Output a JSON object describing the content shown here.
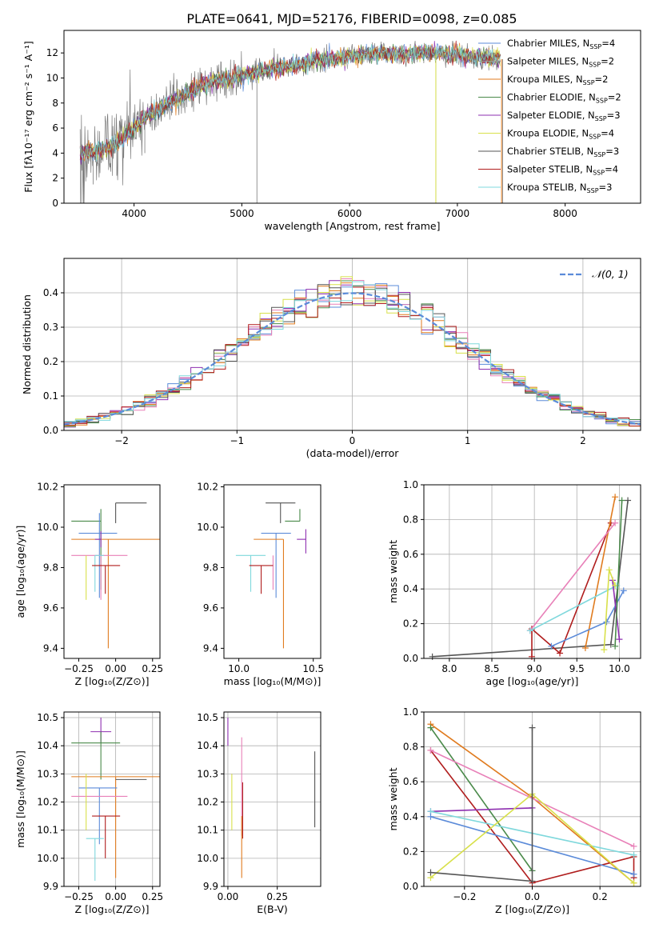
{
  "title": "PLATE=0641, MJD=52176, FIBERID=0098, z=0.085",
  "colors": {
    "chabrier_miles": "#5b8bd9",
    "salpeter_miles": "#9a9a9a",
    "kroupa_miles": "#e07b1f",
    "chabrier_elodie": "#4a8a4a",
    "salpeter_elodie": "#8e2fb0",
    "kroupa_elodie": "#d8e04a",
    "chabrier_stelib": "#555555",
    "salpeter_stelib": "#b01d1d",
    "kroupa_stelib": "#7fd8dc",
    "pink": "#e880b8",
    "gaussian": "#5b8bd9"
  },
  "chart_data": [
    {
      "id": "spectrum",
      "type": "line",
      "xlabel": "wavelength [Angstrom, rest frame]",
      "ylabel": "Flux [fλ10⁻¹⁷ erg cm⁻² s⁻¹ A⁻¹]",
      "xlim": [
        3350,
        8700
      ],
      "ylim": [
        0,
        13.8
      ],
      "xticks": [
        "4000",
        "5000",
        "6000",
        "7000",
        "8000"
      ],
      "yticks": [
        "0",
        "2",
        "4",
        "6",
        "8",
        "10",
        "12"
      ],
      "legend": "top-right",
      "series": [
        {
          "name": "Chabrier MILES, N_SSP=4",
          "color": "chabrier_miles"
        },
        {
          "name": "Salpeter MILES, N_SSP=2",
          "color": "salpeter_miles"
        },
        {
          "name": "Kroupa MILES, N_SSP=2",
          "color": "kroupa_miles"
        },
        {
          "name": "Chabrier ELODIE, N_SSP=2",
          "color": "chabrier_elodie"
        },
        {
          "name": "Salpeter ELODIE, N_SSP=3",
          "color": "salpeter_elodie"
        },
        {
          "name": "Kroupa ELODIE, N_SSP=4",
          "color": "kroupa_elodie"
        },
        {
          "name": "Chabrier STELIB, N_SSP=3",
          "color": "chabrier_stelib"
        },
        {
          "name": "Salpeter STELIB, N_SSP=4",
          "color": "salpeter_stelib"
        },
        {
          "name": "Kroupa STELIB, N_SSP=3",
          "color": "kroupa_stelib"
        }
      ],
      "observed_continuum": {
        "x": [
          3500,
          3700,
          3900,
          4000,
          4100,
          4300,
          4500,
          4700,
          4900,
          5100,
          5300,
          5500,
          5700,
          5900,
          6100,
          6300,
          6500,
          6700,
          6900,
          7100,
          7300,
          7400
        ],
        "y": [
          4.0,
          4.2,
          5.2,
          6.0,
          6.8,
          7.9,
          8.8,
          9.6,
          10.0,
          10.4,
          10.7,
          11.0,
          11.4,
          11.6,
          11.8,
          12.0,
          11.8,
          12.1,
          11.9,
          11.8,
          11.6,
          11.5
        ]
      }
    },
    {
      "id": "residuals",
      "type": "histogram",
      "xlabel": "(data-model)/error",
      "ylabel": "Normed distribution",
      "xlim": [
        -2.5,
        2.5
      ],
      "ylim": [
        0,
        0.5
      ],
      "xticks": [
        "−2",
        "−1",
        "0",
        "1",
        "2"
      ],
      "yticks": [
        "0.0",
        "0.1",
        "0.2",
        "0.3",
        "0.4"
      ],
      "legend_label": "𝒩(0, 1)",
      "bin_width": 0.1,
      "gaussian": {
        "mean": 0,
        "sigma": 1
      }
    },
    {
      "id": "age_vs_Z",
      "type": "scatter",
      "xlabel": "Z [log₁₀(Z/Z⊙)]",
      "ylabel": "age  [log₁₀(age/yr)]",
      "xlim": [
        -0.35,
        0.3
      ],
      "ylim": [
        9.35,
        10.21
      ],
      "xticks": [
        -0.25,
        0.0,
        0.25
      ],
      "xtick_labels": [
        "−0.25",
        "0.00",
        "0.25"
      ],
      "yticks": [
        9.4,
        9.6,
        9.8,
        10.0,
        10.2
      ],
      "ytick_labels": [
        "9.4",
        "9.6",
        "9.8",
        "10.0",
        "10.2"
      ],
      "points": [
        {
          "color": "chabrier_stelib",
          "x": 0.0,
          "y": 10.12,
          "xerr": [
            0.0,
            0.21
          ],
          "yerr": [
            0.1,
            0.0
          ]
        },
        {
          "color": "chabrier_elodie",
          "x": -0.1,
          "y": 10.03,
          "xerr": [
            0.2,
            0.0
          ],
          "yerr": [
            0.34,
            0.06
          ]
        },
        {
          "color": "chabrier_miles",
          "x": -0.11,
          "y": 9.97,
          "xerr": [
            0.14,
            0.12
          ],
          "yerr": [
            0.32,
            0.1
          ]
        },
        {
          "color": "kroupa_miles",
          "x": -0.05,
          "y": 9.94,
          "xerr": [
            0.25,
            0.35
          ],
          "yerr": [
            0.54,
            0.0
          ]
        },
        {
          "color": "salpeter_elodie",
          "x": -0.1,
          "y": 9.94,
          "xerr": [
            0.04,
            0.0
          ],
          "yerr": [
            0.04,
            0.04
          ]
        },
        {
          "color": "pink",
          "x": -0.1,
          "y": 9.86,
          "xerr": [
            0.2,
            0.18
          ],
          "yerr": [
            0.22,
            0.0
          ]
        },
        {
          "color": "kroupa_stelib",
          "x": -0.14,
          "y": 9.86,
          "xerr": [
            0.0,
            0.06
          ],
          "yerr": [
            0.18,
            0.0
          ]
        },
        {
          "color": "salpeter_stelib",
          "x": -0.07,
          "y": 9.81,
          "xerr": [
            0.09,
            0.1
          ],
          "yerr": [
            0.14,
            0.0
          ]
        },
        {
          "color": "kroupa_elodie",
          "x": -0.2,
          "y": 9.86,
          "xerr": [
            0.0,
            0.0
          ],
          "yerr": [
            0.22,
            0.0
          ]
        }
      ]
    },
    {
      "id": "age_vs_mass",
      "type": "scatter",
      "xlabel": "mass [log₁₀(M/M⊙)]",
      "ylabel": "",
      "xlim": [
        9.9,
        10.55
      ],
      "ylim": [
        9.35,
        10.21
      ],
      "xticks": [
        10.0,
        10.5
      ],
      "xtick_labels": [
        "10.0",
        "10.5"
      ],
      "yticks": [
        9.4,
        9.6,
        9.8,
        10.0,
        10.2
      ],
      "ytick_labels": [
        "9.4",
        "9.6",
        "9.8",
        "10.0",
        "10.2"
      ],
      "points": [
        {
          "color": "chabrier_stelib",
          "x": 10.28,
          "y": 10.12,
          "xerr": [
            0.1,
            0.1
          ],
          "yerr": [
            0.1,
            0.0
          ]
        },
        {
          "color": "chabrier_elodie",
          "x": 10.41,
          "y": 10.03,
          "xerr": [
            0.1,
            0.0
          ],
          "yerr": [
            0.0,
            0.06
          ]
        },
        {
          "color": "chabrier_miles",
          "x": 10.25,
          "y": 9.97,
          "xerr": [
            0.1,
            0.1
          ],
          "yerr": [
            0.32,
            0.0
          ]
        },
        {
          "color": "kroupa_miles",
          "x": 10.3,
          "y": 9.94,
          "xerr": [
            0.2,
            0.0
          ],
          "yerr": [
            0.54,
            0.0
          ]
        },
        {
          "color": "salpeter_elodie",
          "x": 10.45,
          "y": 9.94,
          "xerr": [
            0.06,
            0.0
          ],
          "yerr": [
            0.07,
            0.05
          ]
        },
        {
          "color": "pink",
          "x": 10.23,
          "y": 9.86,
          "xerr": [
            0.0,
            0.0
          ],
          "yerr": [
            0.17,
            0.0
          ]
        },
        {
          "color": "kroupa_stelib",
          "x": 10.08,
          "y": 9.86,
          "xerr": [
            0.1,
            0.1
          ],
          "yerr": [
            0.18,
            0.0
          ]
        },
        {
          "color": "salpeter_stelib",
          "x": 10.15,
          "y": 9.81,
          "xerr": [
            0.08,
            0.08
          ],
          "yerr": [
            0.14,
            0.0
          ]
        }
      ]
    },
    {
      "id": "weight_vs_age",
      "type": "line",
      "xlabel": "age  [log₁₀(age/yr)]",
      "ylabel": "mass weight",
      "xlim": [
        7.7,
        10.25
      ],
      "ylim": [
        0,
        1.0
      ],
      "xticks": [
        8.0,
        8.5,
        9.0,
        9.5,
        10.0
      ],
      "xtick_labels": [
        "8.0",
        "8.5",
        "9.0",
        "9.5",
        "10.0"
      ],
      "yticks": [
        0.0,
        0.2,
        0.4,
        0.6,
        0.8,
        1.0
      ],
      "ytick_labels": [
        "0.0",
        "0.2",
        "0.4",
        "0.6",
        "0.8",
        "1.0"
      ],
      "series": [
        {
          "color": "chabrier_stelib",
          "x": [
            7.8,
            9.9,
            10.1
          ],
          "y": [
            0.01,
            0.08,
            0.91
          ]
        },
        {
          "color": "salpeter_stelib",
          "x": [
            8.97,
            8.97,
            9.3,
            9.9
          ],
          "y": [
            0.01,
            0.17,
            0.03,
            0.78
          ]
        },
        {
          "color": "kroupa_miles",
          "x": [
            9.6,
            9.95
          ],
          "y": [
            0.06,
            0.93
          ]
        },
        {
          "color": "pink",
          "x": [
            8.95,
            9.95
          ],
          "y": [
            0.16,
            0.78
          ]
        },
        {
          "color": "kroupa_stelib",
          "x": [
            8.95,
            9.97
          ],
          "y": [
            0.16,
            0.42
          ]
        },
        {
          "color": "chabrier_miles",
          "x": [
            9.2,
            9.85,
            10.05
          ],
          "y": [
            0.07,
            0.21,
            0.39
          ]
        },
        {
          "color": "salpeter_elodie",
          "x": [
            9.92,
            10.0
          ],
          "y": [
            0.45,
            0.11
          ]
        },
        {
          "color": "kroupa_elodie",
          "x": [
            9.82,
            9.88,
            9.95
          ],
          "y": [
            0.05,
            0.51,
            0.42
          ]
        },
        {
          "color": "chabrier_elodie",
          "x": [
            9.95,
            10.03
          ],
          "y": [
            0.07,
            0.91
          ]
        }
      ]
    },
    {
      "id": "mass_vs_Z",
      "type": "scatter",
      "xlabel": "Z [log₁₀(Z/Z⊙)]",
      "ylabel": "mass [log₁₀(M/M⊙)]",
      "xlim": [
        -0.35,
        0.3
      ],
      "ylim": [
        9.9,
        10.52
      ],
      "xticks": [
        -0.25,
        0.0,
        0.25
      ],
      "xtick_labels": [
        "−0.25",
        "0.00",
        "0.25"
      ],
      "yticks": [
        9.9,
        10.0,
        10.1,
        10.2,
        10.3,
        10.4,
        10.5
      ],
      "ytick_labels": [
        "9.9",
        "10.0",
        "10.1",
        "10.2",
        "10.3",
        "10.4",
        "10.5"
      ],
      "points": [
        {
          "color": "salpeter_elodie",
          "x": -0.1,
          "y": 10.45,
          "xerr": [
            0.07,
            0.07
          ],
          "yerr": [
            0.04,
            0.05
          ]
        },
        {
          "color": "chabrier_elodie",
          "x": -0.1,
          "y": 10.41,
          "xerr": [
            0.2,
            0.13
          ],
          "yerr": [
            0.13,
            0.04
          ]
        },
        {
          "color": "kroupa_miles",
          "x": 0.0,
          "y": 10.29,
          "xerr": [
            0.3,
            0.3
          ],
          "yerr": [
            0.36,
            0.0
          ]
        },
        {
          "color": "chabrier_stelib",
          "x": 0.0,
          "y": 10.28,
          "xerr": [
            0.0,
            0.21
          ],
          "yerr": [
            0.0,
            0.0
          ]
        },
        {
          "color": "chabrier_miles",
          "x": -0.11,
          "y": 10.25,
          "xerr": [
            0.14,
            0.12
          ],
          "yerr": [
            0.2,
            0.0
          ]
        },
        {
          "color": "pink",
          "x": -0.1,
          "y": 10.22,
          "xerr": [
            0.2,
            0.18
          ],
          "yerr": [
            0.0,
            0.0
          ]
        },
        {
          "color": "salpeter_stelib",
          "x": -0.07,
          "y": 10.15,
          "xerr": [
            0.09,
            0.1
          ],
          "yerr": [
            0.15,
            0.0
          ]
        },
        {
          "color": "kroupa_stelib",
          "x": -0.14,
          "y": 10.07,
          "xerr": [
            0.06,
            0.06
          ],
          "yerr": [
            0.15,
            0.0
          ]
        },
        {
          "color": "kroupa_elodie",
          "x": -0.2,
          "y": 10.2,
          "xerr": [
            0.0,
            0.0
          ],
          "yerr": [
            0.1,
            0.1
          ]
        }
      ]
    },
    {
      "id": "mass_vs_ebv",
      "type": "scatter",
      "xlabel": "E(B-V)",
      "ylabel": "",
      "xlim": [
        -0.02,
        0.47
      ],
      "ylim": [
        9.9,
        10.52
      ],
      "xticks": [
        0.0,
        0.25
      ],
      "xtick_labels": [
        "0.00",
        "0.25"
      ],
      "yticks": [
        9.9,
        10.0,
        10.1,
        10.2,
        10.3,
        10.4,
        10.5
      ],
      "ytick_labels": [
        "9.9",
        "10.0",
        "10.1",
        "10.2",
        "10.3",
        "10.4",
        "10.5"
      ],
      "points": [
        {
          "color": "salpeter_elodie",
          "x": 0.0,
          "y": 10.4,
          "xerr": [
            0.0,
            0.0
          ],
          "yerr": [
            0.0,
            0.1
          ]
        },
        {
          "color": "kroupa_elodie",
          "x": 0.02,
          "y": 10.2,
          "xerr": [
            0.0,
            0.0
          ],
          "yerr": [
            0.1,
            0.1
          ]
        },
        {
          "color": "pink",
          "x": 0.07,
          "y": 10.3,
          "xerr": [
            0.0,
            0.0
          ],
          "yerr": [
            0.22,
            0.13
          ]
        },
        {
          "color": "kroupa_miles",
          "x": 0.07,
          "y": 10.15,
          "xerr": [
            0.0,
            0.0
          ],
          "yerr": [
            0.22,
            0.0
          ]
        },
        {
          "color": "salpeter_stelib",
          "x": 0.075,
          "y": 10.2,
          "xerr": [
            0.0,
            0.0
          ],
          "yerr": [
            0.13,
            0.07
          ]
        },
        {
          "color": "chabrier_stelib",
          "x": 0.44,
          "y": 10.24,
          "xerr": [
            0.0,
            0.0
          ],
          "yerr": [
            0.13,
            0.14
          ]
        }
      ]
    },
    {
      "id": "weight_vs_Z",
      "type": "line",
      "xlabel": "Z [log₁₀(Z/Z⊙)]",
      "ylabel": "mass weight",
      "xlim": [
        -0.32,
        0.32
      ],
      "ylim": [
        0,
        1.0
      ],
      "xticks": [
        -0.2,
        0.0,
        0.2
      ],
      "xtick_labels": [
        "−0.2",
        "0.0",
        "0.2"
      ],
      "yticks": [
        0.0,
        0.2,
        0.4,
        0.6,
        0.8,
        1.0
      ],
      "ytick_labels": [
        "0.0",
        "0.2",
        "0.4",
        "0.6",
        "0.8",
        "1.0"
      ],
      "series": [
        {
          "color": "kroupa_miles",
          "x": [
            -0.3,
            0.0,
            0.3
          ],
          "y": [
            0.93,
            0.51,
            0.02
          ]
        },
        {
          "color": "chabrier_elodie",
          "x": [
            -0.3,
            0.0
          ],
          "y": [
            0.91,
            0.09
          ]
        },
        {
          "color": "salpeter_stelib",
          "x": [
            -0.3,
            0.0,
            0.3,
            0.3
          ],
          "y": [
            0.78,
            0.02,
            0.17,
            0.05
          ]
        },
        {
          "color": "pink",
          "x": [
            -0.3,
            0.3
          ],
          "y": [
            0.78,
            0.23
          ]
        },
        {
          "color": "salpeter_elodie",
          "x": [
            -0.3,
            0.0
          ],
          "y": [
            0.43,
            0.45
          ]
        },
        {
          "color": "kroupa_stelib",
          "x": [
            -0.3,
            0.3
          ],
          "y": [
            0.43,
            0.18
          ]
        },
        {
          "color": "chabrier_miles",
          "x": [
            -0.3,
            0.3
          ],
          "y": [
            0.4,
            0.07
          ]
        },
        {
          "color": "kroupa_elodie",
          "x": [
            -0.3,
            0.0,
            0.3
          ],
          "y": [
            0.05,
            0.53,
            0.02
          ]
        },
        {
          "color": "chabrier_stelib",
          "x": [
            -0.3,
            0.0,
            0.0
          ],
          "y": [
            0.08,
            0.03,
            0.91
          ]
        }
      ]
    }
  ]
}
